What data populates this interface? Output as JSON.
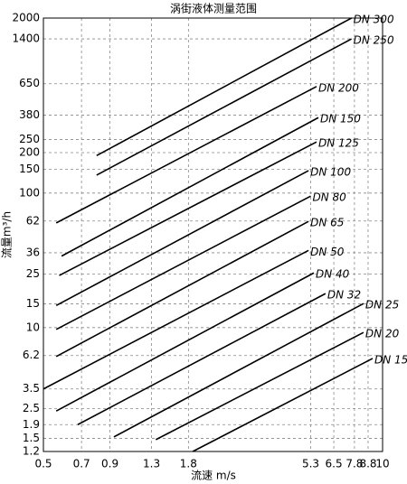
{
  "chart_data": {
    "type": "line",
    "title": "涡街液体测量范围",
    "x_label": "流速 m/s",
    "y_label": "流量m³/h",
    "xscale": "log",
    "yscale": "log",
    "grid": true,
    "color": "#000000",
    "xlim": [
      0.5,
      10
    ],
    "ylim": [
      1.2,
      2000
    ],
    "xticks": [
      0.5,
      0.7,
      0.9,
      1.3,
      1.8,
      5.3,
      6.5,
      7.8,
      8.8,
      10
    ],
    "yticks": [
      1.2,
      1.5,
      1.9,
      2.5,
      3.5,
      6.2,
      10,
      15,
      25,
      36,
      62,
      100,
      150,
      200,
      250,
      380,
      650,
      1400,
      2000
    ],
    "series": [
      {
        "name": "DN 300",
        "x": [
          0.8,
          7.6
        ],
        "values": [
          190,
          2000
        ]
      },
      {
        "name": "DN 250",
        "x": [
          0.8,
          7.6
        ],
        "values": [
          136,
          1400
        ]
      },
      {
        "name": "DN 200",
        "x": [
          0.56,
          5.58
        ],
        "values": [
          60,
          620
        ]
      },
      {
        "name": "DN 150",
        "x": [
          0.587,
          5.67
        ],
        "values": [
          34,
          364
        ]
      },
      {
        "name": "DN 125",
        "x": [
          0.575,
          5.58
        ],
        "values": [
          24.4,
          240
        ]
      },
      {
        "name": "DN 100",
        "x": [
          0.56,
          5.2
        ],
        "values": [
          14.6,
          147
        ]
      },
      {
        "name": "DN 80",
        "x": [
          0.56,
          5.3
        ],
        "values": [
          9.7,
          95
        ]
      },
      {
        "name": "DN 65",
        "x": [
          0.56,
          5.2
        ],
        "values": [
          6.1,
          61.6
        ]
      },
      {
        "name": "DN 50",
        "x": [
          0.5,
          5.2
        ],
        "values": [
          3.5,
          37.5
        ]
      },
      {
        "name": "DN 40",
        "x": [
          0.56,
          5.45
        ],
        "values": [
          2.4,
          25.5
        ]
      },
      {
        "name": "DN 32",
        "x": [
          0.677,
          6.04
        ],
        "values": [
          1.9,
          17.9
        ]
      },
      {
        "name": "DN 25",
        "x": [
          0.932,
          8.45
        ],
        "values": [
          1.54,
          15.1
        ]
      },
      {
        "name": "DN 20",
        "x": [
          1.35,
          8.45
        ],
        "values": [
          1.47,
          9.2
        ]
      },
      {
        "name": "DN 15",
        "x": [
          1.87,
          9.16
        ],
        "values": [
          1.2,
          5.9
        ]
      }
    ]
  }
}
